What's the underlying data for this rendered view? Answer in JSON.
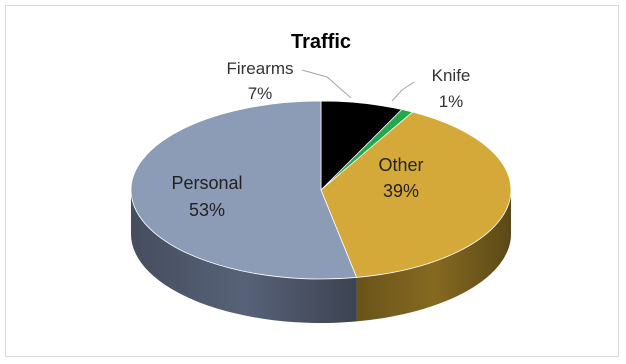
{
  "chart_data": {
    "type": "pie",
    "style": "3d",
    "title": "Traffic",
    "categories": [
      "Firearms",
      "Knife",
      "Other",
      "Personal"
    ],
    "values": [
      7,
      1,
      39,
      53
    ],
    "labels": [
      "7%",
      "1%",
      "39%",
      "53%"
    ],
    "colors": [
      "#000000",
      "#1faa4c",
      "#d4a93a",
      "#8c9bb6"
    ],
    "side_colors": [
      "#111111",
      "#16803a",
      "#8c6f22",
      "#5c677e"
    ],
    "legend": "none"
  }
}
